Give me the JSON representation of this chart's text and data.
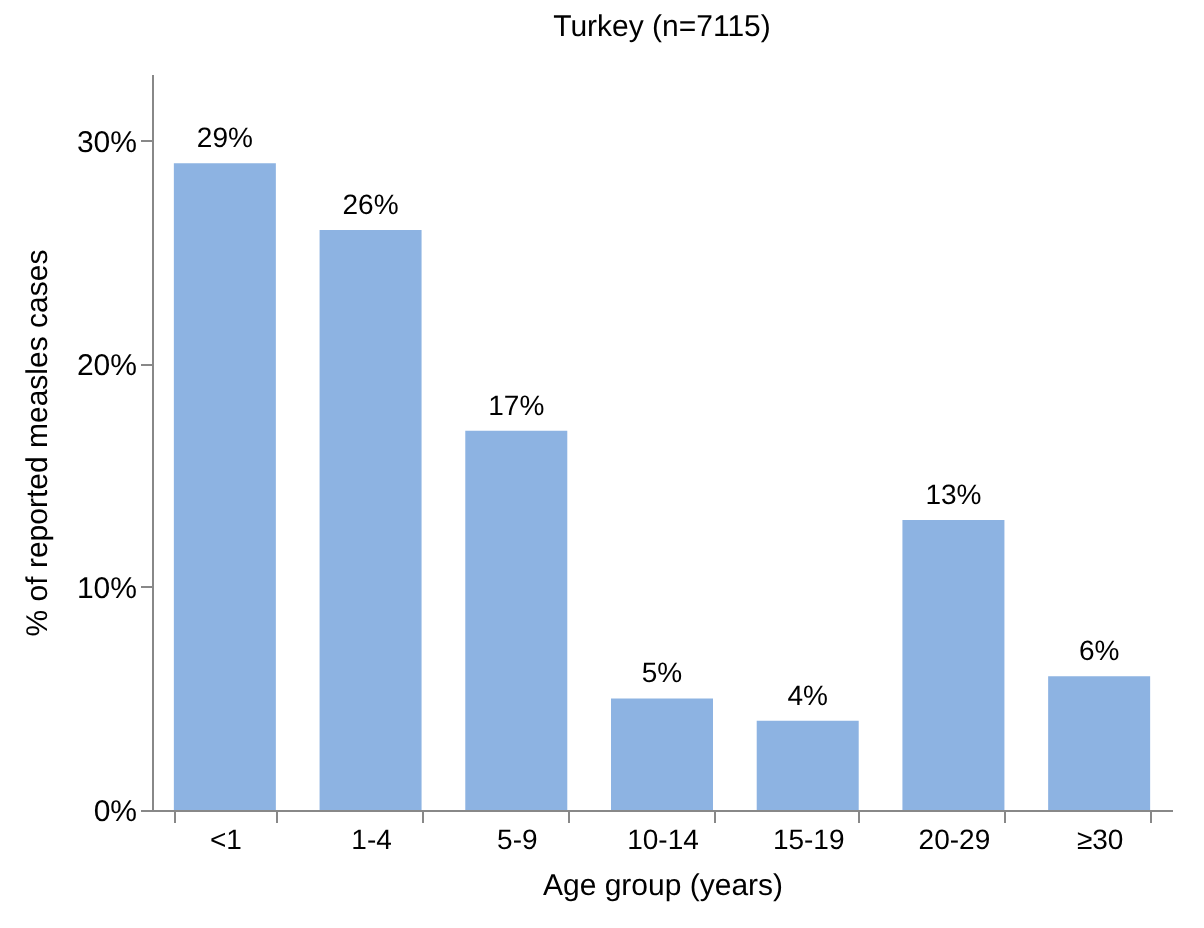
{
  "chart_data": {
    "type": "bar",
    "title": "Turkey (n=7115)",
    "xlabel": "Age group (years)",
    "ylabel": "% of reported measles cases",
    "categories": [
      "<1",
      "1-4",
      "5-9",
      "10-14",
      "15-19",
      "20-29",
      "≥30"
    ],
    "values": [
      29,
      26,
      17,
      5,
      4,
      13,
      6
    ],
    "value_labels": [
      "29%",
      "26%",
      "17%",
      "5%",
      "4%",
      "13%",
      "6%"
    ],
    "color": "#8db3e2",
    "ylim": [
      0,
      33
    ],
    "yticks": [
      {
        "value": 0,
        "label": "0%"
      },
      {
        "value": 10,
        "label": "10%"
      },
      {
        "value": 20,
        "label": "20%"
      },
      {
        "value": 30,
        "label": "30%"
      }
    ],
    "grid": false
  }
}
